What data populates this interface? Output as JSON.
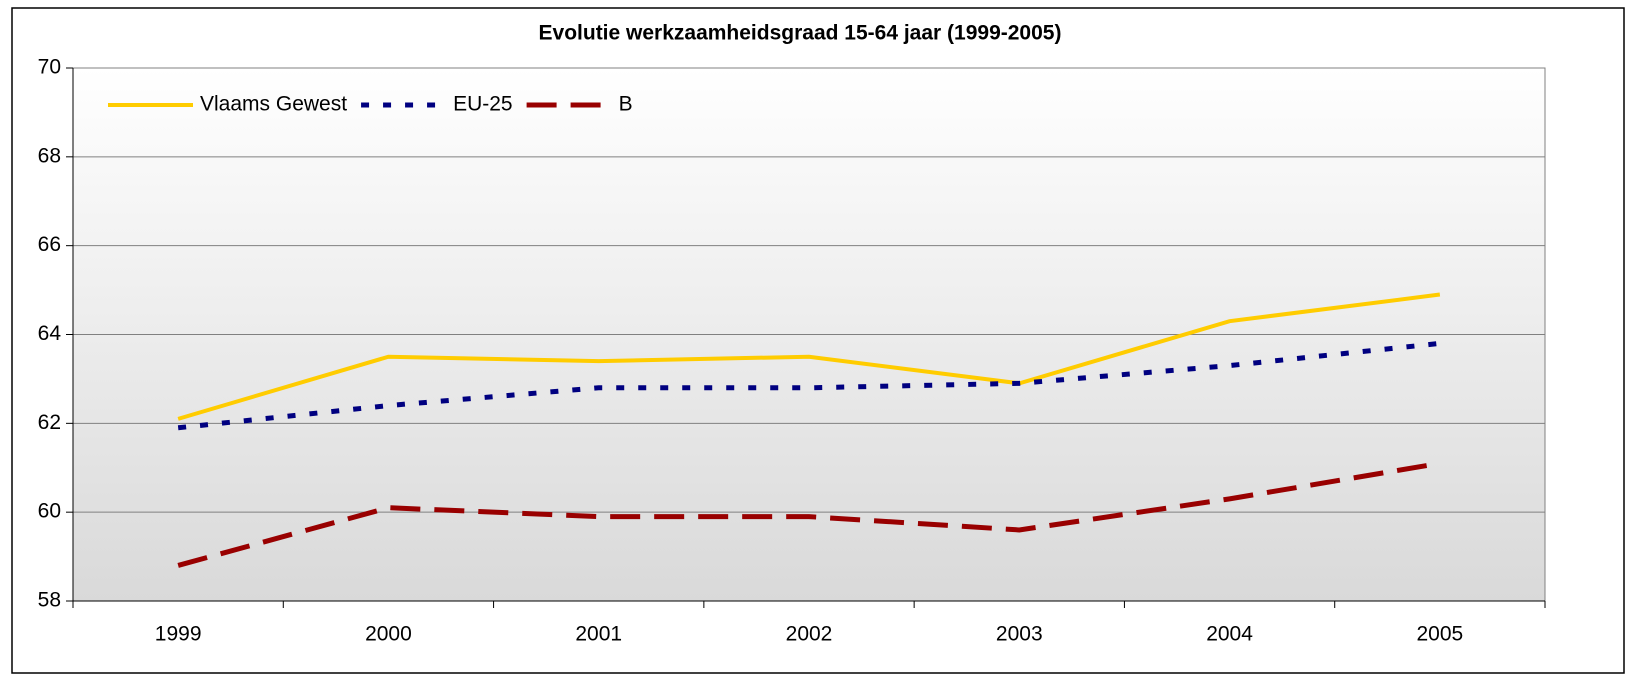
{
  "chart_data": {
    "type": "line",
    "title": "Evolutie werkzaamheidsgraad 15-64 jaar (1999-2005)",
    "categories": [
      "1999",
      "2000",
      "2001",
      "2002",
      "2003",
      "2004",
      "2005"
    ],
    "series": [
      {
        "name": "Vlaams Gewest",
        "color": "#ffcc00",
        "dash": "solid",
        "values": [
          62.1,
          63.5,
          63.4,
          63.5,
          62.9,
          64.3,
          64.9
        ]
      },
      {
        "name": "EU-25",
        "color": "#000080",
        "dash": "dotted",
        "values": [
          61.9,
          62.4,
          62.8,
          62.8,
          62.9,
          63.3,
          63.8
        ]
      },
      {
        "name": "B",
        "color": "#990000",
        "dash": "dashed",
        "values": [
          58.8,
          60.1,
          59.9,
          59.9,
          59.6,
          60.3,
          61.1
        ]
      }
    ],
    "ylim": [
      58,
      70
    ],
    "yticks": [
      58,
      60,
      62,
      64,
      66,
      68,
      70
    ],
    "grid": true,
    "legend": "top-left"
  }
}
